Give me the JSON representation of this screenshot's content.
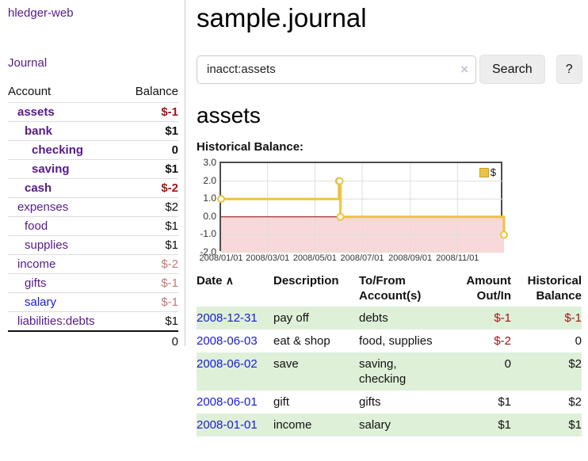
{
  "app": {
    "title": "hledger-web"
  },
  "sidebar": {
    "journal_link": "Journal",
    "accounts_table": {
      "headers": [
        "Account",
        "Balance"
      ],
      "rows": [
        {
          "account": "assets",
          "balance": "$-1",
          "depth": 1,
          "bold": true,
          "negative": "strong"
        },
        {
          "account": "bank",
          "balance": "$1",
          "depth": 2,
          "bold": true,
          "negative": "none"
        },
        {
          "account": "checking",
          "balance": "0",
          "depth": 3,
          "bold": true,
          "negative": "none"
        },
        {
          "account": "saving",
          "balance": "$1",
          "depth": 3,
          "bold": true,
          "negative": "none"
        },
        {
          "account": "cash",
          "balance": "$-2",
          "depth": 2,
          "bold": true,
          "negative": "strong"
        },
        {
          "account": "expenses",
          "balance": "$2",
          "depth": 1,
          "bold": false,
          "negative": "none"
        },
        {
          "account": "food",
          "balance": "$1",
          "depth": 2,
          "bold": false,
          "negative": "none"
        },
        {
          "account": "supplies",
          "balance": "$1",
          "depth": 2,
          "bold": false,
          "negative": "none"
        },
        {
          "account": "income",
          "balance": "$-2",
          "depth": 1,
          "bold": false,
          "negative": "soft"
        },
        {
          "account": "gifts",
          "balance": "$-1",
          "depth": 2,
          "bold": false,
          "negative": "soft"
        },
        {
          "account": "salary",
          "balance": "$-1",
          "depth": 2,
          "bold": false,
          "negative": "soft",
          "link_color": "blue"
        },
        {
          "account": "liabilities:debts",
          "balance": "$1",
          "depth": 1,
          "bold": false,
          "negative": "none"
        }
      ],
      "total": "0"
    }
  },
  "main": {
    "title": "sample.journal",
    "search": {
      "value": "inacct:assets",
      "clear_icon": "×",
      "button_label": "Search",
      "help_label": "?"
    },
    "account_heading": "assets",
    "chart_label": "Historical Balance:"
  },
  "chart_data": {
    "type": "line",
    "title": "Historical Balance",
    "step": true,
    "series": [
      {
        "name": "$",
        "points": [
          [
            "2008-01-01",
            1
          ],
          [
            "2008-06-01",
            2
          ],
          [
            "2008-06-02",
            2
          ],
          [
            "2008-06-03",
            0
          ],
          [
            "2008-12-31",
            -1
          ]
        ]
      }
    ],
    "xlim": [
      "2008-01-01",
      "2008-12-31"
    ],
    "ylim": [
      -2,
      3
    ],
    "yticks": [
      3.0,
      2.0,
      1.0,
      0.0,
      -1.0,
      -2.0
    ],
    "xticks": [
      "2008/01/01",
      "2008/03/01",
      "2008/05/01",
      "2008/07/01",
      "2008/09/01",
      "2008/11/01"
    ],
    "legend": {
      "label": "$",
      "position": "top-right"
    },
    "grid": true,
    "colors": {
      "line": "#edc240",
      "marker_fill": "#ffffff",
      "negative_region": "#f8d9d9",
      "zero_line": "#8b0000",
      "gridline": "#dedede",
      "border": "#4d4d4d"
    }
  },
  "register": {
    "sort_icon": "∧",
    "headers": [
      "Date",
      "Description",
      "To/From Account(s)",
      "Amount Out/In",
      "Historical Balance"
    ],
    "rows": [
      {
        "date": "2008-12-31",
        "description": "pay off",
        "accounts": "debts",
        "amount": "$-1",
        "balance": "$-1",
        "amount_neg": true,
        "balance_neg": true
      },
      {
        "date": "2008-06-03",
        "description": "eat & shop",
        "accounts": "food, supplies",
        "amount": "$-2",
        "balance": "0",
        "amount_neg": true,
        "balance_neg": false
      },
      {
        "date": "2008-06-02",
        "description": "save",
        "accounts": "saving, checking",
        "amount": "0",
        "balance": "$2",
        "amount_neg": false,
        "balance_neg": false
      },
      {
        "date": "2008-06-01",
        "description": "gift",
        "accounts": "gifts",
        "amount": "$1",
        "balance": "$2",
        "amount_neg": false,
        "balance_neg": false
      },
      {
        "date": "2008-01-01",
        "description": "income",
        "accounts": "salary",
        "amount": "$1",
        "balance": "$1",
        "amount_neg": false,
        "balance_neg": false
      }
    ]
  }
}
